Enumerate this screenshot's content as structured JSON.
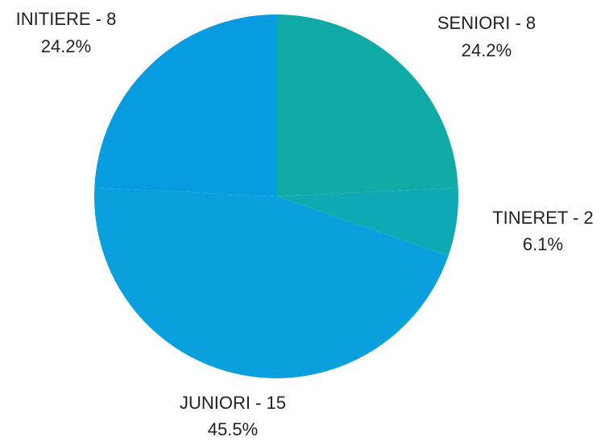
{
  "chart_data": {
    "type": "pie",
    "title": "",
    "slices": [
      {
        "category": "SENIORI",
        "count": 8,
        "percent": "24.2%",
        "label": "SENIORI - 8",
        "color": "#0fa9a6"
      },
      {
        "category": "TINERET",
        "count": 2,
        "percent": "6.1%",
        "label": "TINERET - 2",
        "color": "#0fa9b3"
      },
      {
        "category": "JUNIORI",
        "count": 15,
        "percent": "45.5%",
        "label": "JUNIORI - 15",
        "color": "#0aa0dd"
      },
      {
        "category": "INITIERE",
        "count": 8,
        "percent": "24.2%",
        "label": "INITIERE - 8",
        "color": "#079be0"
      }
    ],
    "start_angle_deg": 0,
    "direction": "clockwise",
    "legend": "none"
  }
}
